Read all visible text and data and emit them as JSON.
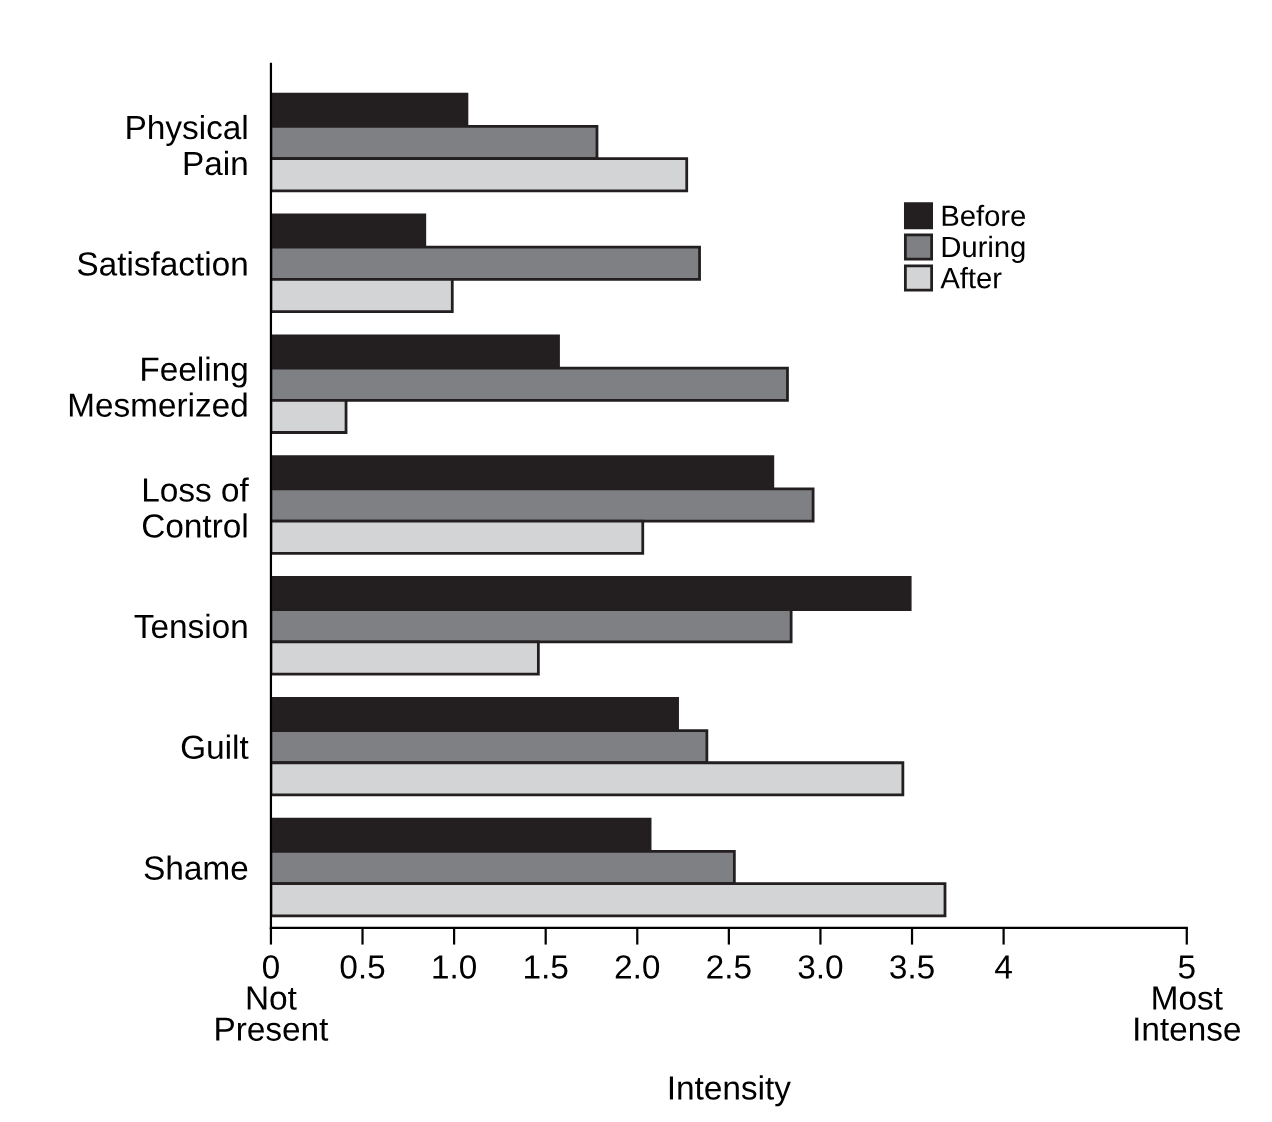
{
  "chart_data": {
    "type": "bar",
    "orientation": "horizontal",
    "categories": [
      "Physical\nPain",
      "Satisfaction",
      "Feeling\nMesmerized",
      "Loss of\nControl",
      "Tension",
      "Guilt",
      "Shame"
    ],
    "series": [
      {
        "name": "Before",
        "color": "#231f20",
        "values": [
          1.07,
          0.84,
          1.57,
          2.74,
          3.49,
          2.22,
          2.07
        ]
      },
      {
        "name": "During",
        "color": "#7f8083",
        "values": [
          1.78,
          2.34,
          2.82,
          2.96,
          2.84,
          2.38,
          2.53
        ]
      },
      {
        "name": "After",
        "color": "#d3d4d6",
        "values": [
          2.27,
          0.99,
          0.41,
          2.03,
          1.46,
          3.45,
          3.68
        ]
      }
    ],
    "xlabel": "Intensity",
    "xlim": [
      0,
      5
    ],
    "xticks": [
      {
        "value": 0,
        "label": "0\nNot\nPresent"
      },
      0.5,
      {
        "value": 1,
        "label": "1.0"
      },
      1.5,
      {
        "value": 2,
        "label": "2.0"
      },
      2.5,
      {
        "value": 3,
        "label": "3.0"
      },
      3.5,
      4,
      {
        "value": 5,
        "label": "5\nMost\nIntense"
      }
    ],
    "legend": "top right",
    "grid": false
  }
}
